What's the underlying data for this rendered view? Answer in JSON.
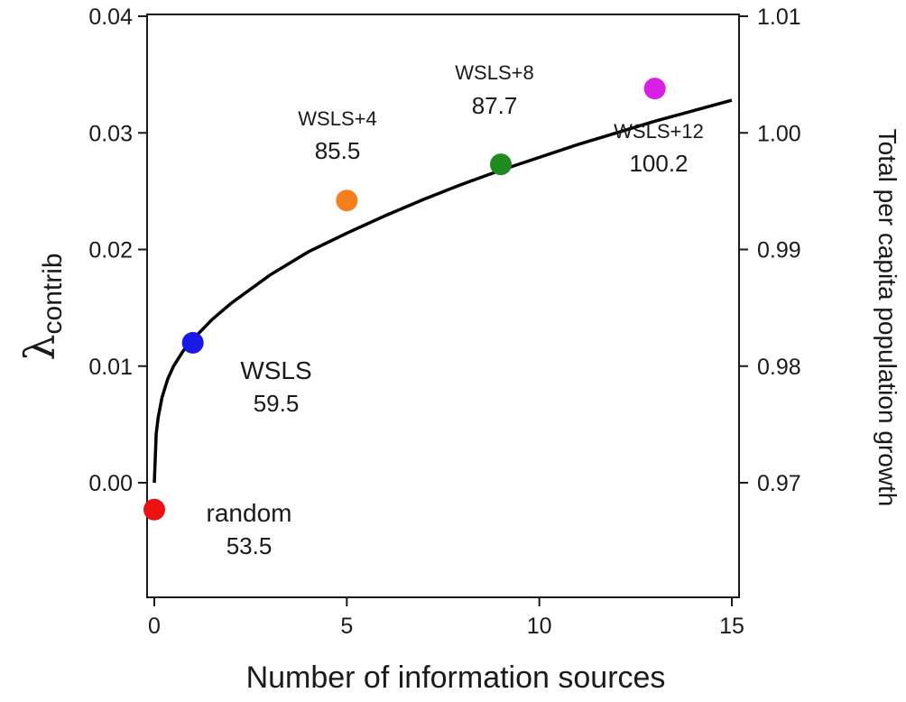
{
  "chart_data": {
    "type": "scatter",
    "xlabel": "Number of information sources",
    "ylabel_symbol": "λ",
    "ylabel_subscript": "contrib",
    "y2label": "Total per capita population growth",
    "xlim": [
      0,
      15
    ],
    "ylim": [
      -0.0095,
      0.04
    ],
    "y2lim": [
      0.9605,
      1.01
    ],
    "x_ticks": [
      0,
      5,
      10,
      15
    ],
    "x_tick_labels": [
      "0",
      "5",
      "10",
      "15"
    ],
    "y_ticks": [
      0.0,
      0.01,
      0.02,
      0.03,
      0.04
    ],
    "y_tick_labels": [
      "0.00",
      "0.01",
      "0.02",
      "0.03",
      "0.04"
    ],
    "y2_ticks": [
      0.97,
      0.98,
      0.99,
      1.0,
      1.01
    ],
    "y2_tick_labels": [
      "0.97",
      "0.98",
      "0.99",
      "1.00",
      "1.01"
    ],
    "grid": false,
    "points": [
      {
        "x": 0,
        "y": -0.0023,
        "color": "#ee1111",
        "label": "random",
        "value": "53.5"
      },
      {
        "x": 1,
        "y": 0.012,
        "color": "#1a1ae6",
        "label": "WSLS",
        "value": "59.5"
      },
      {
        "x": 5,
        "y": 0.0242,
        "color": "#f57f1c",
        "label": "WSLS+4",
        "value": "85.5"
      },
      {
        "x": 9,
        "y": 0.0273,
        "color": "#1f8a1f",
        "label": "WSLS+8",
        "value": "87.7"
      },
      {
        "x": 13,
        "y": 0.0338,
        "color": "#d81fe6",
        "label": "WSLS+12",
        "value": "100.2"
      }
    ],
    "fit_curve": {
      "color": "#000000",
      "x": [
        0,
        0.05,
        0.1,
        0.2,
        0.35,
        0.5,
        0.75,
        1,
        1.5,
        2,
        3,
        4,
        5,
        6,
        7,
        8,
        9,
        10,
        11,
        12,
        13,
        14,
        15
      ],
      "y": [
        0.0,
        0.0042,
        0.0056,
        0.0073,
        0.0089,
        0.01,
        0.0113,
        0.0123,
        0.014,
        0.0154,
        0.0178,
        0.0198,
        0.0214,
        0.0229,
        0.0243,
        0.0256,
        0.0268,
        0.0279,
        0.029,
        0.03,
        0.031,
        0.0319,
        0.0328
      ]
    }
  }
}
